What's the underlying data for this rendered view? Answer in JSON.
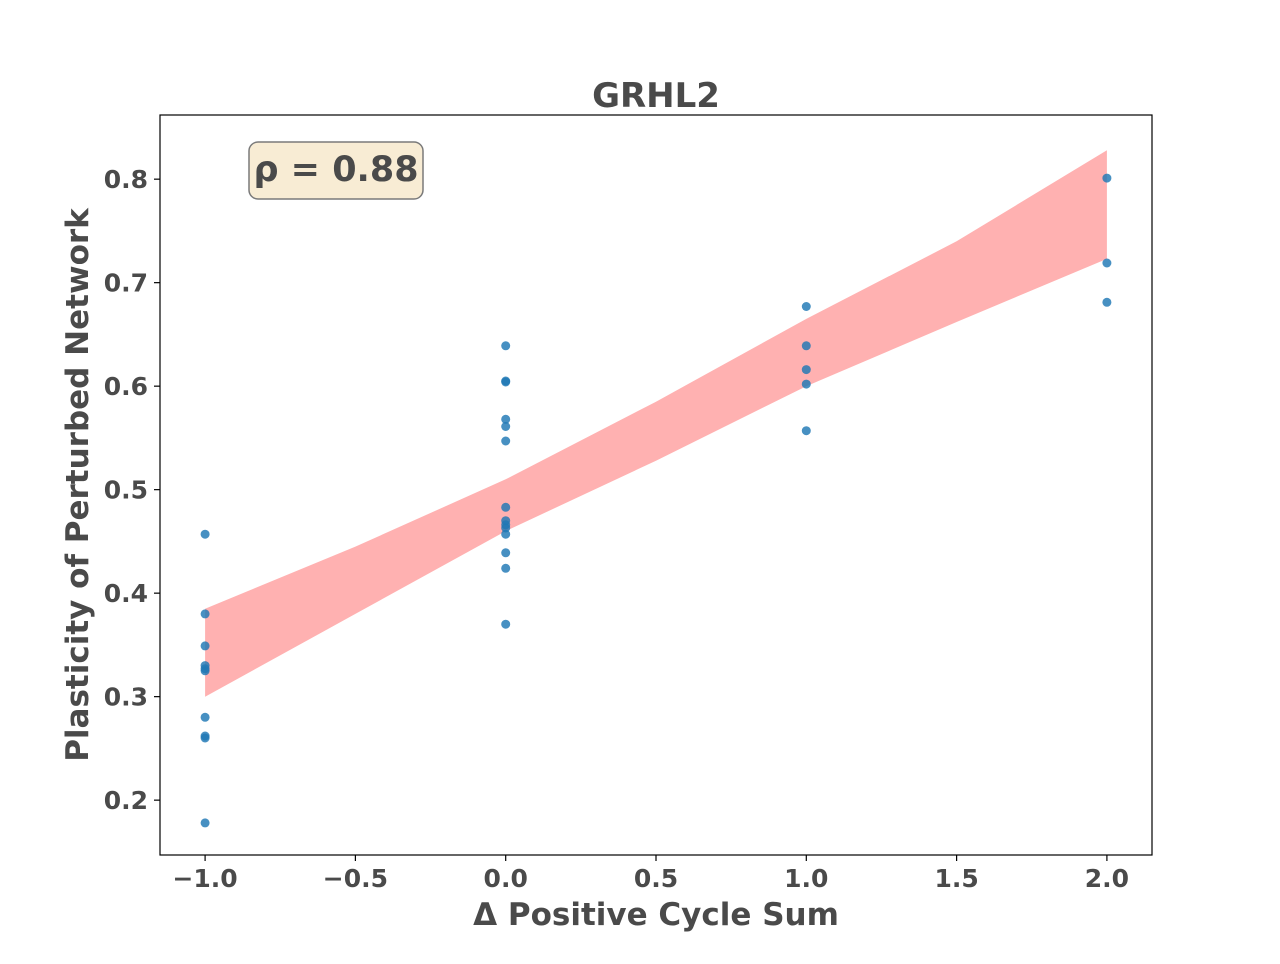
{
  "chart_data": {
    "type": "scatter",
    "title": "GRHL2",
    "xlabel": "Δ Positive Cycle Sum",
    "ylabel": "Plasticity of Perturbed Network",
    "annotation": "ρ = 0.88",
    "xlim": [
      -1.15,
      2.15
    ],
    "ylim": [
      0.147,
      0.862
    ],
    "x_ticks": [
      -1.0,
      -0.5,
      0.0,
      0.5,
      1.0,
      1.5,
      2.0
    ],
    "x_tick_labels": [
      "−1.0",
      "−0.5",
      "0.0",
      "0.5",
      "1.0",
      "1.5",
      "2.0"
    ],
    "y_ticks": [
      0.2,
      0.3,
      0.4,
      0.5,
      0.6,
      0.7,
      0.8
    ],
    "y_tick_labels": [
      "0.2",
      "0.3",
      "0.4",
      "0.5",
      "0.6",
      "0.7",
      "0.8"
    ],
    "grid": false,
    "colors": {
      "points": "#1f77b4",
      "band": "#ffb1b1",
      "text": "#4a4a4a",
      "annotation_bg": "#f8ecd4"
    },
    "points": [
      {
        "x": -1,
        "y": 0.457
      },
      {
        "x": -1,
        "y": 0.38
      },
      {
        "x": -1,
        "y": 0.349
      },
      {
        "x": -1,
        "y": 0.33
      },
      {
        "x": -1,
        "y": 0.327
      },
      {
        "x": -1,
        "y": 0.325
      },
      {
        "x": -1,
        "y": 0.28
      },
      {
        "x": -1,
        "y": 0.262
      },
      {
        "x": -1,
        "y": 0.26
      },
      {
        "x": -1,
        "y": 0.178
      },
      {
        "x": 0,
        "y": 0.639
      },
      {
        "x": 0,
        "y": 0.605
      },
      {
        "x": 0,
        "y": 0.604
      },
      {
        "x": 0,
        "y": 0.568
      },
      {
        "x": 0,
        "y": 0.561
      },
      {
        "x": 0,
        "y": 0.547
      },
      {
        "x": 0,
        "y": 0.483
      },
      {
        "x": 0,
        "y": 0.47
      },
      {
        "x": 0,
        "y": 0.466
      },
      {
        "x": 0,
        "y": 0.463
      },
      {
        "x": 0,
        "y": 0.457
      },
      {
        "x": 0,
        "y": 0.439
      },
      {
        "x": 0,
        "y": 0.424
      },
      {
        "x": 0,
        "y": 0.37
      },
      {
        "x": 1,
        "y": 0.677
      },
      {
        "x": 1,
        "y": 0.639
      },
      {
        "x": 1,
        "y": 0.616
      },
      {
        "x": 1,
        "y": 0.602
      },
      {
        "x": 1,
        "y": 0.557
      },
      {
        "x": 2,
        "y": 0.801
      },
      {
        "x": 2,
        "y": 0.719
      },
      {
        "x": 2,
        "y": 0.681
      }
    ],
    "confidence_band": {
      "x": [
        -1.0,
        -0.5,
        0.0,
        0.5,
        1.0,
        1.5,
        2.0
      ],
      "upper": [
        0.385,
        0.445,
        0.51,
        0.585,
        0.665,
        0.74,
        0.828
      ],
      "lower": [
        0.3,
        0.38,
        0.46,
        0.528,
        0.6,
        0.662,
        0.723
      ]
    }
  }
}
